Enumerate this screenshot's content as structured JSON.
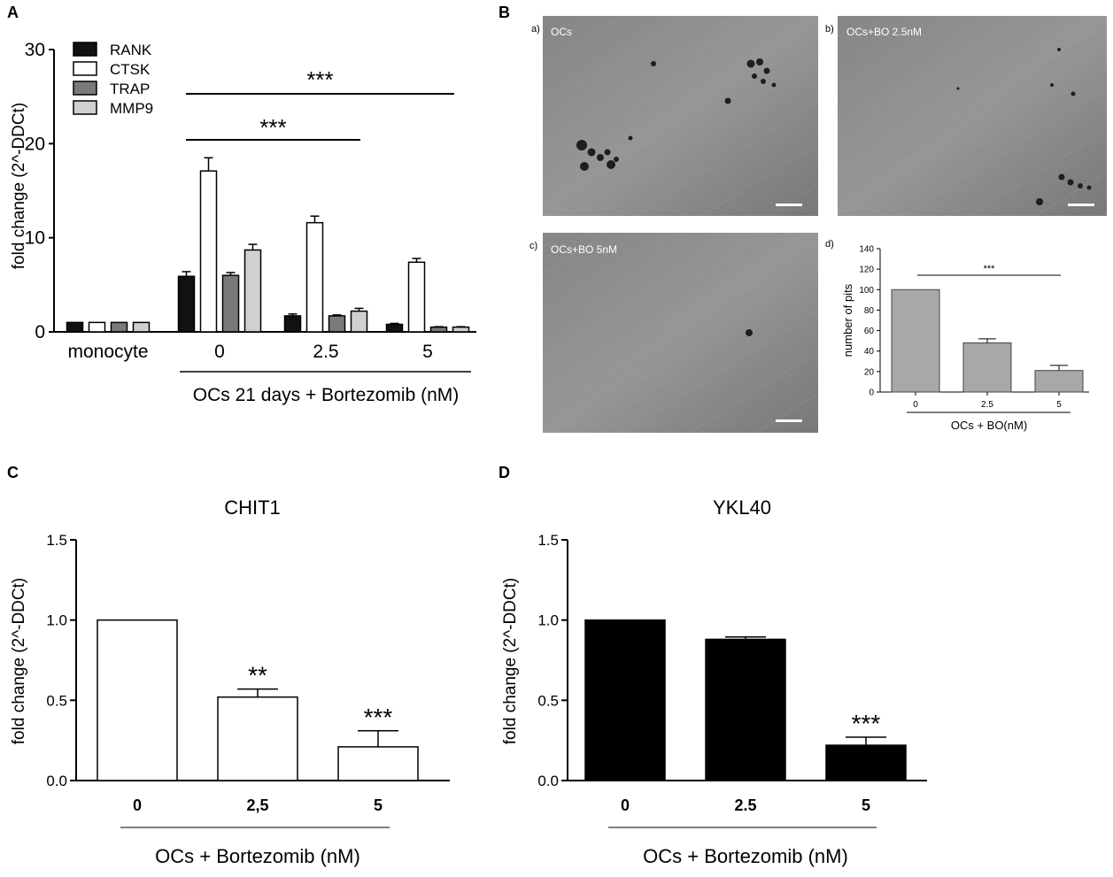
{
  "panels": {
    "A": "A",
    "B": "B",
    "C": "C",
    "D": "D"
  },
  "micrographs": [
    {
      "letter": "a)",
      "label": "OCs"
    },
    {
      "letter": "b)",
      "label": "OCs+BO 2.5nM"
    },
    {
      "letter": "c)",
      "label": "OCs+BO 5nM"
    }
  ],
  "colors": {
    "RANK": "#111111",
    "CTSK": "#ffffff",
    "TRAP": "#7a7a7a",
    "MMP9": "#d0d0d0",
    "pits_bar": "#a8a8a8",
    "chit1_bar": "#ffffff",
    "ykl40_bar": "#000000"
  },
  "chart_data": [
    {
      "id": "A",
      "type": "bar",
      "title": "",
      "ylabel": "fold change (2^-DDCt)",
      "xlabel": "OCs 21 days + Bortezomib (nM)",
      "ylim": [
        0,
        30
      ],
      "yticks": [
        0,
        10,
        20,
        30
      ],
      "grid": false,
      "legend_position": "top-left",
      "categories": [
        "monocyte",
        "0",
        "2.5",
        "5"
      ],
      "series": [
        {
          "name": "RANK",
          "values": [
            1,
            5.9,
            1.7,
            0.8
          ],
          "errors": [
            0,
            0.5,
            0.2,
            0.1
          ]
        },
        {
          "name": "CTSK",
          "values": [
            1,
            17.1,
            11.6,
            7.4
          ],
          "errors": [
            0,
            1.4,
            0.7,
            0.4
          ]
        },
        {
          "name": "TRAP",
          "values": [
            1,
            6.0,
            1.7,
            0.5
          ],
          "errors": [
            0,
            0.3,
            0.1,
            0.05
          ]
        },
        {
          "name": "MMP9",
          "values": [
            1,
            8.7,
            2.2,
            0.5
          ],
          "errors": [
            0,
            0.6,
            0.3,
            0.05
          ]
        }
      ],
      "significance": [
        {
          "label": "***",
          "from": "0",
          "to": "2.5"
        },
        {
          "label": "***",
          "from": "0",
          "to": "5"
        }
      ]
    },
    {
      "id": "B-d",
      "type": "bar",
      "title": "",
      "panel_label": "d)",
      "ylabel": "number of pits",
      "xlabel": "OCs + BO(nM)",
      "ylim": [
        0,
        140
      ],
      "yticks": [
        0,
        20,
        40,
        60,
        80,
        100,
        120,
        140
      ],
      "categories": [
        "0",
        "2.5",
        "5"
      ],
      "values": [
        100,
        48,
        21
      ],
      "errors": [
        0,
        4,
        5
      ],
      "significance": [
        {
          "label": "***",
          "from": "0",
          "to": "5"
        }
      ]
    },
    {
      "id": "C",
      "type": "bar",
      "title": "CHIT1",
      "ylabel": "fold change (2^-DDCt)",
      "xlabel": "OCs + Bortezomib (nM)",
      "ylim": [
        0,
        1.5
      ],
      "yticks": [
        "0.0",
        "0.5",
        "1.0",
        "1.5"
      ],
      "categories": [
        "0",
        "2,5",
        "5"
      ],
      "values": [
        1.0,
        0.52,
        0.21
      ],
      "errors": [
        0,
        0.05,
        0.1
      ],
      "stars": [
        "",
        "**",
        "***"
      ]
    },
    {
      "id": "D",
      "type": "bar",
      "title": "YKL40",
      "ylabel": "fold change (2^-DDCt)",
      "xlabel": "OCs + Bortezomib (nM)",
      "ylim": [
        0,
        1.5
      ],
      "yticks": [
        "0.0",
        "0.5",
        "1.0",
        "1.5"
      ],
      "categories": [
        "0",
        "2.5",
        "5"
      ],
      "values": [
        1.0,
        0.88,
        0.22
      ],
      "errors": [
        0,
        0.015,
        0.05
      ],
      "stars": [
        "",
        "",
        "***"
      ]
    }
  ]
}
